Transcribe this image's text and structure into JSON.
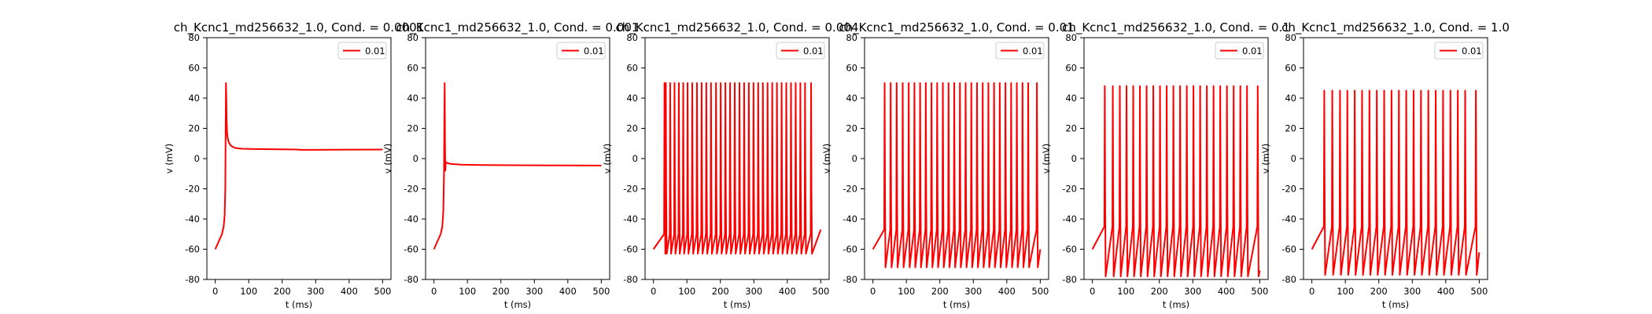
{
  "colors": {
    "trace": "#ff0000",
    "axes": "#000000",
    "background": "#ffffff"
  },
  "chart_data": [
    {
      "type": "line",
      "title": "ch_Kcnc1_md256632_1.0, Cond. = 0.0001",
      "xlabel": "t (ms)",
      "ylabel": "v (mV)",
      "xlim": [
        -25,
        525
      ],
      "ylim": [
        -80,
        80
      ],
      "xticks": [
        0,
        100,
        200,
        300,
        400,
        500
      ],
      "yticks": [
        -80,
        -60,
        -40,
        -20,
        0,
        20,
        40,
        60,
        80
      ],
      "legend": {
        "position": "top-right",
        "entries": [
          "0.01"
        ]
      },
      "series": [
        {
          "name": "0.01",
          "color": "#ff0000",
          "description": "single spike then plateau",
          "x": [
            0,
            10,
            20,
            25,
            28,
            30,
            31,
            32,
            33,
            34,
            35,
            37,
            40,
            45,
            50,
            60,
            80,
            120,
            200,
            250,
            251,
            300,
            400,
            500
          ],
          "y": [
            -60,
            -55,
            -50,
            -45,
            -38,
            -20,
            20,
            50,
            40,
            25,
            18,
            14,
            11,
            9,
            8,
            7,
            6.5,
            6.3,
            6.1,
            6,
            5.8,
            5.8,
            5.9,
            6
          ]
        }
      ]
    },
    {
      "type": "line",
      "title": "ch_Kcnc1_md256632_1.0, Cond. = 0.001",
      "xlabel": "t (ms)",
      "ylabel": "v (mV)",
      "xlim": [
        -25,
        525
      ],
      "ylim": [
        -80,
        80
      ],
      "xticks": [
        0,
        100,
        200,
        300,
        400,
        500
      ],
      "yticks": [
        -80,
        -60,
        -40,
        -20,
        0,
        20,
        40,
        60,
        80
      ],
      "legend": {
        "position": "top-right",
        "entries": [
          "0.01"
        ]
      },
      "series": [
        {
          "name": "0.01",
          "color": "#ff0000",
          "description": "single spike then plateau",
          "x": [
            0,
            10,
            20,
            25,
            28,
            30,
            31,
            32,
            33,
            34,
            35,
            37,
            40,
            50,
            80,
            150,
            300,
            500
          ],
          "y": [
            -60,
            -55,
            -50,
            -45,
            -35,
            -10,
            25,
            50,
            10,
            -8,
            -3,
            -2.5,
            -3,
            -3.5,
            -4,
            -4.3,
            -4.5,
            -4.6
          ]
        }
      ]
    },
    {
      "type": "line",
      "title": "ch_Kcnc1_md256632_1.0, Cond. = 0.004",
      "xlabel": "t (ms)",
      "ylabel": "v (mV)",
      "xlim": [
        -25,
        525
      ],
      "ylim": [
        -80,
        80
      ],
      "xticks": [
        0,
        100,
        200,
        300,
        400,
        500
      ],
      "yticks": [
        -80,
        -60,
        -40,
        -20,
        0,
        20,
        40,
        60,
        80
      ],
      "legend": {
        "position": "top-right",
        "entries": [
          "0.01"
        ]
      },
      "series": [
        {
          "name": "0.01",
          "color": "#ff0000",
          "description": "tonic spiking",
          "spike_times": [
            33,
            37,
            50,
            63,
            76,
            89,
            102,
            116,
            130,
            144,
            158,
            172,
            187,
            201,
            215,
            229,
            243,
            257,
            271,
            285,
            299,
            313,
            327,
            341,
            355,
            369,
            383,
            397,
            411,
            425,
            439,
            453,
            471
          ],
          "peak": 50,
          "trough": -63,
          "threshold": -50,
          "initial": -60,
          "end_value": -47
        }
      ]
    },
    {
      "type": "line",
      "title": "ch_Kcnc1_md256632_1.0, Cond. = 0.01",
      "xlabel": "t (ms)",
      "ylabel": "v (mV)",
      "xlim": [
        -25,
        525
      ],
      "ylim": [
        -80,
        80
      ],
      "xticks": [
        0,
        100,
        200,
        300,
        400,
        500
      ],
      "yticks": [
        -80,
        -60,
        -40,
        -20,
        0,
        20,
        40,
        60,
        80
      ],
      "legend": {
        "position": "top-right",
        "entries": [
          "0.01"
        ]
      },
      "series": [
        {
          "name": "0.01",
          "color": "#ff0000",
          "description": "tonic spiking",
          "spike_times": [
            35,
            53,
            71,
            89,
            107,
            124,
            141,
            158,
            175,
            192,
            209,
            226,
            243,
            260,
            277,
            294,
            311,
            328,
            345,
            362,
            379,
            396,
            413,
            430,
            447,
            464,
            490
          ],
          "peak": 50,
          "trough": -72,
          "threshold": -47,
          "initial": -60,
          "end_value": -60
        }
      ]
    },
    {
      "type": "line",
      "title": "ch_Kcnc1_md256632_1.0, Cond. = 0.1",
      "xlabel": "t (ms)",
      "ylabel": "v (mV)",
      "xlim": [
        -25,
        525
      ],
      "ylim": [
        -80,
        80
      ],
      "xticks": [
        0,
        100,
        200,
        300,
        400,
        500
      ],
      "yticks": [
        -80,
        -60,
        -40,
        -20,
        0,
        20,
        40,
        60,
        80
      ],
      "legend": {
        "position": "top-right",
        "entries": [
          "0.01"
        ]
      },
      "series": [
        {
          "name": "0.01",
          "color": "#ff0000",
          "description": "tonic spiking",
          "spike_times": [
            37,
            61,
            82,
            102,
            122,
            142,
            162,
            182,
            202,
            222,
            242,
            262,
            282,
            302,
            322,
            342,
            362,
            382,
            402,
            422,
            442,
            462,
            494
          ],
          "peak": 48,
          "trough": -78,
          "threshold": -45,
          "initial": -60,
          "end_value": -74
        }
      ]
    },
    {
      "type": "line",
      "title": "ch_Kcnc1_md256632_1.0, Cond. = 1.0",
      "xlabel": "t (ms)",
      "ylabel": "v (mV)",
      "xlim": [
        -25,
        525
      ],
      "ylim": [
        -80,
        80
      ],
      "xticks": [
        0,
        100,
        200,
        300,
        400,
        500
      ],
      "yticks": [
        -80,
        -60,
        -40,
        -20,
        0,
        20,
        40,
        60,
        80
      ],
      "legend": {
        "position": "top-right",
        "entries": [
          "0.01"
        ]
      },
      "series": [
        {
          "name": "0.01",
          "color": "#ff0000",
          "description": "tonic spiking",
          "spike_times": [
            37,
            61,
            84,
            106,
            128,
            150,
            172,
            194,
            216,
            238,
            260,
            282,
            304,
            326,
            348,
            370,
            392,
            414,
            436,
            458,
            490
          ],
          "peak": 45,
          "trough": -77,
          "threshold": -45,
          "initial": -60,
          "end_value": -62
        }
      ]
    }
  ]
}
